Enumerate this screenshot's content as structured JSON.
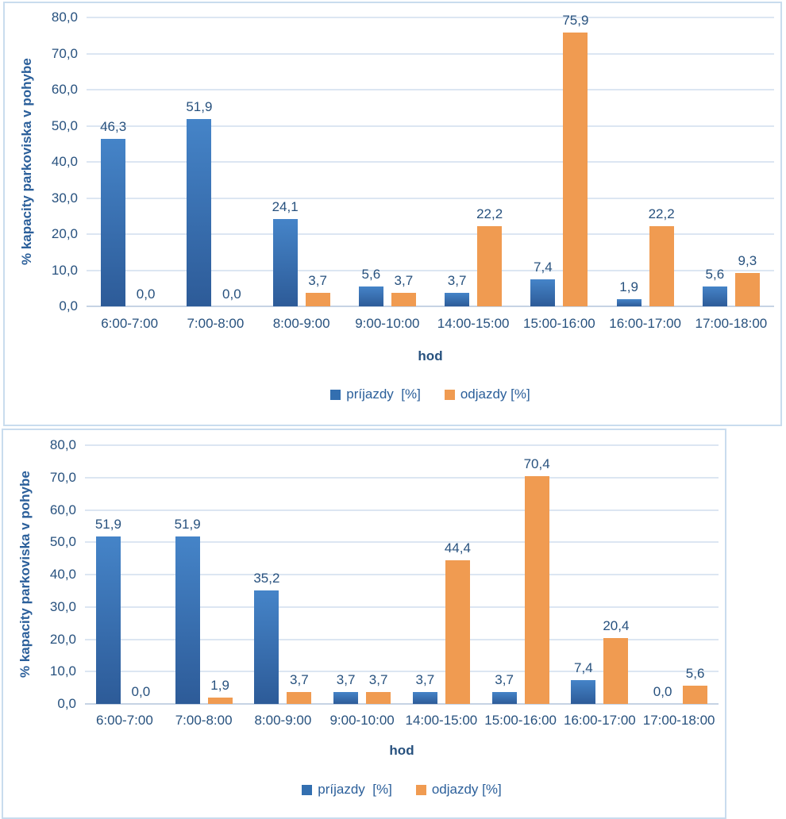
{
  "colors": {
    "bar_blue_gradient_top": "#4584c8",
    "bar_blue_gradient_bottom": "#2d5b98",
    "bar_orange": "#f09b51",
    "text_navy": "#27517e",
    "title_blue": "#2b5f9a",
    "gridline": "#dce6f2",
    "chart_border": "#c9dcee"
  },
  "chart_data": [
    {
      "type": "bar",
      "title": "",
      "ylabel": "% kapacity parkoviska v pohybe",
      "xlabel": "hod",
      "ylim": [
        0,
        80
      ],
      "grid": true,
      "legend_position": "bottom",
      "yticks": [
        "80,0",
        "70,0",
        "60,0",
        "50,0",
        "40,0",
        "30,0",
        "20,0",
        "10,0",
        "0,0"
      ],
      "categories": [
        "6:00-7:00",
        "7:00-8:00",
        "8:00-9:00",
        "9:00-10:00",
        "14:00-15:00",
        "15:00-16:00",
        "16:00-17:00",
        "17:00-18:00"
      ],
      "series": [
        {
          "name": "príjazdy  [%]",
          "color": "#2d5b98",
          "values": [
            46.3,
            51.9,
            24.1,
            5.6,
            3.7,
            7.4,
            1.9,
            5.6
          ],
          "labels": [
            "46,3",
            "51,9",
            "24,1",
            "5,6",
            "3,7",
            "7,4",
            "1,9",
            "5,6"
          ]
        },
        {
          "name": "odjazdy [%]",
          "color": "#f09b51",
          "values": [
            0.0,
            0.0,
            3.7,
            3.7,
            22.2,
            75.9,
            22.2,
            9.3
          ],
          "labels": [
            "0,0",
            "0,0",
            "3,7",
            "3,7",
            "22,2",
            "75,9",
            "22,2",
            "9,3"
          ]
        }
      ]
    },
    {
      "type": "bar",
      "title": "",
      "ylabel": "% kapacity parkoviska v pohybe",
      "xlabel": "hod",
      "ylim": [
        0,
        80
      ],
      "grid": true,
      "legend_position": "bottom",
      "yticks": [
        "80,0",
        "70,0",
        "60,0",
        "50,0",
        "40,0",
        "30,0",
        "20,0",
        "10,0",
        "0,0"
      ],
      "categories": [
        "6:00-7:00",
        "7:00-8:00",
        "8:00-9:00",
        "9:00-10:00",
        "14:00-15:00",
        "15:00-16:00",
        "16:00-17:00",
        "17:00-18:00"
      ],
      "series": [
        {
          "name": "príjazdy  [%]",
          "color": "#2d5b98",
          "values": [
            51.9,
            51.9,
            35.2,
            3.7,
            3.7,
            3.7,
            7.4,
            0.0
          ],
          "labels": [
            "51,9",
            "51,9",
            "35,2",
            "3,7",
            "3,7",
            "3,7",
            "7,4",
            "0,0"
          ]
        },
        {
          "name": "odjazdy [%]",
          "color": "#f09b51",
          "values": [
            0.0,
            1.9,
            3.7,
            3.7,
            44.4,
            70.4,
            20.4,
            5.6
          ],
          "labels": [
            "0,0",
            "1,9",
            "3,7",
            "3,7",
            "44,4",
            "70,4",
            "20,4",
            "5,6"
          ]
        }
      ]
    }
  ]
}
